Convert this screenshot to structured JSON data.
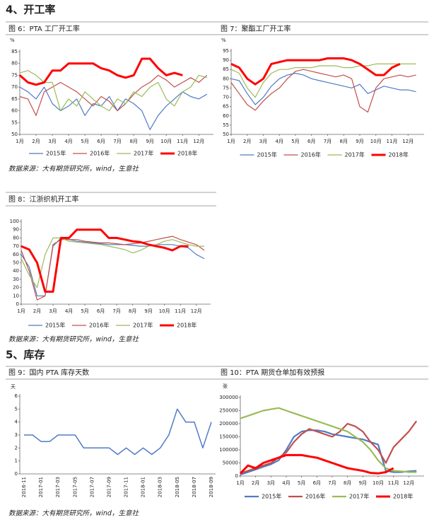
{
  "headings": [
    "4、开工率",
    "5、库存"
  ],
  "notes": [
    "数据来源：大有期货研究所，wind，生意社",
    "数据来源：大有期货研究所，wind，生意社",
    "数据来源：大有期货研究所，wind，生意社"
  ],
  "chart_data": [
    {
      "type": "line",
      "title": "图 6：PTA 工厂开工率",
      "y_unit": "%",
      "x": [
        1,
        1.5,
        2,
        2.5,
        3,
        3.5,
        4,
        4.5,
        5,
        5.5,
        6,
        6.5,
        7,
        7.5,
        8,
        8.5,
        9,
        9.5,
        10,
        10.5,
        11,
        11.5,
        12,
        12.5
      ],
      "xlim": [
        1,
        12.9
      ],
      "xticks": [
        {
          "value": 1,
          "label": "1月"
        },
        {
          "value": 2,
          "label": "2月"
        },
        {
          "value": 3,
          "label": "3月"
        },
        {
          "value": 4,
          "label": "4月"
        },
        {
          "value": 5,
          "label": "5月"
        },
        {
          "value": 6,
          "label": "6月"
        },
        {
          "value": 7,
          "label": "7月"
        },
        {
          "value": 8,
          "label": "8月"
        },
        {
          "value": 9,
          "label": "9月"
        },
        {
          "value": 10,
          "label": "10月"
        },
        {
          "value": 11,
          "label": "11月"
        },
        {
          "value": 12,
          "label": "12月"
        }
      ],
      "ylim": [
        50,
        85
      ],
      "yticks": [
        50,
        55,
        60,
        65,
        70,
        75,
        80,
        85
      ],
      "series": [
        {
          "name": "2015年",
          "color": "#4f7bc4",
          "width": 1.2,
          "values": [
            70,
            68,
            65,
            70,
            63,
            60,
            62,
            65,
            58,
            63,
            62,
            66,
            60,
            65,
            63,
            60,
            52,
            58,
            62,
            65,
            68,
            66,
            65,
            67
          ]
        },
        {
          "name": "2016年",
          "color": "#c0504d",
          "width": 1.2,
          "values": [
            66,
            65,
            58,
            68,
            70,
            72,
            70,
            68,
            65,
            62,
            66,
            64,
            60,
            63,
            67,
            70,
            72,
            75,
            73,
            70,
            72,
            74,
            72,
            75
          ]
        },
        {
          "name": "2017年",
          "color": "#9bbb59",
          "width": 1.2,
          "values": [
            76,
            77,
            75,
            72,
            72,
            60,
            65,
            62,
            68,
            65,
            62,
            60,
            65,
            63,
            68,
            66,
            70,
            72,
            65,
            62,
            68,
            70,
            75,
            74
          ]
        },
        {
          "name": "2018年",
          "color": "#ff0000",
          "width": 3,
          "values": [
            75,
            72,
            71,
            72,
            77,
            77,
            80,
            80,
            80,
            80,
            78,
            77,
            75,
            74,
            75,
            82,
            82,
            78,
            75,
            76,
            75,
            null,
            null,
            null
          ]
        }
      ]
    },
    {
      "type": "line",
      "title": "图 7：聚酯工厂开工率",
      "y_unit": "%",
      "x": [
        1,
        1.5,
        2,
        2.5,
        3,
        3.5,
        4,
        4.5,
        5,
        5.5,
        6,
        6.5,
        7,
        7.5,
        8,
        8.5,
        9,
        9.5,
        10,
        10.5,
        11,
        11.5,
        12,
        12.5
      ],
      "xlim": [
        1,
        13
      ],
      "xticks": [
        {
          "value": 1,
          "label": "1月"
        },
        {
          "value": 2,
          "label": "2月"
        },
        {
          "value": 3,
          "label": "3月"
        },
        {
          "value": 4,
          "label": "4月"
        },
        {
          "value": 5,
          "label": "5月"
        },
        {
          "value": 6,
          "label": "6月"
        },
        {
          "value": 7,
          "label": "7月"
        },
        {
          "value": 8,
          "label": "8月"
        },
        {
          "value": 9,
          "label": "9月"
        },
        {
          "value": 10,
          "label": "10月"
        },
        {
          "value": 11,
          "label": "11月"
        },
        {
          "value": 12,
          "label": "12月"
        }
      ],
      "ylim": [
        50,
        95
      ],
      "yticks": [
        50,
        55,
        60,
        65,
        70,
        75,
        80,
        85,
        90,
        95
      ],
      "series": [
        {
          "name": "2015年",
          "color": "#4f7bc4",
          "width": 1.2,
          "values": [
            80,
            79,
            72,
            66,
            70,
            76,
            80,
            82,
            83,
            82,
            80,
            79,
            78,
            77,
            76,
            75,
            77,
            72,
            74,
            76,
            75,
            74,
            74,
            73
          ]
        },
        {
          "name": "2016年",
          "color": "#c0504d",
          "width": 1.2,
          "values": [
            78,
            72,
            66,
            63,
            68,
            72,
            75,
            80,
            84,
            85,
            84,
            83,
            82,
            81,
            82,
            80,
            65,
            62,
            75,
            80,
            81,
            82,
            81,
            82
          ]
        },
        {
          "name": "2017年",
          "color": "#9bbb59",
          "width": 1.2,
          "values": [
            85,
            83,
            75,
            70,
            78,
            83,
            85,
            85,
            86,
            86,
            86,
            87,
            87,
            87,
            86,
            86,
            87,
            87,
            88,
            88,
            88,
            88,
            88,
            88
          ]
        },
        {
          "name": "2018年",
          "color": "#ff0000",
          "width": 3,
          "values": [
            88,
            86,
            80,
            77,
            80,
            88,
            89,
            90,
            90,
            90,
            90,
            90,
            91,
            91,
            91,
            90,
            88,
            85,
            82,
            82,
            86,
            88,
            null,
            null
          ]
        }
      ]
    },
    {
      "type": "line",
      "title": "图 8：江浙织机开工率",
      "x": [
        1,
        1.5,
        2,
        2.5,
        3,
        3.5,
        4,
        4.5,
        5,
        5.5,
        6,
        6.5,
        7,
        7.5,
        8,
        8.5,
        9,
        9.5,
        10,
        10.5,
        11,
        11.5,
        12,
        12.5
      ],
      "xlim": [
        1,
        12.9
      ],
      "xticks": [
        {
          "value": 1,
          "label": "1月"
        },
        {
          "value": 2,
          "label": "2月"
        },
        {
          "value": 3,
          "label": "3月"
        },
        {
          "value": 4,
          "label": "4月"
        },
        {
          "value": 5,
          "label": "5月"
        },
        {
          "value": 6,
          "label": "6月"
        },
        {
          "value": 7,
          "label": "7月"
        },
        {
          "value": 8,
          "label": "8月"
        },
        {
          "value": 9,
          "label": "9月"
        },
        {
          "value": 10,
          "label": "10月"
        },
        {
          "value": 11,
          "label": "11月"
        },
        {
          "value": 12,
          "label": "12月"
        }
      ],
      "ylim": [
        0,
        100
      ],
      "yticks": [
        0,
        10,
        20,
        30,
        40,
        50,
        60,
        70,
        80,
        90,
        100
      ],
      "series": [
        {
          "name": "2015年",
          "color": "#4f7bc4",
          "width": 1.2,
          "values": [
            60,
            45,
            10,
            10,
            70,
            80,
            78,
            76,
            75,
            74,
            73,
            72,
            72,
            72,
            71,
            70,
            70,
            72,
            72,
            72,
            70,
            68,
            60,
            55
          ]
        },
        {
          "name": "2016年",
          "color": "#c0504d",
          "width": 1.2,
          "values": [
            65,
            40,
            5,
            10,
            72,
            78,
            78,
            78,
            76,
            75,
            74,
            74,
            73,
            72,
            73,
            74,
            76,
            78,
            80,
            82,
            78,
            75,
            72,
            65
          ]
        },
        {
          "name": "2017年",
          "color": "#9bbb59",
          "width": 1.2,
          "values": [
            55,
            35,
            20,
            60,
            80,
            80,
            76,
            75,
            74,
            73,
            72,
            70,
            68,
            66,
            62,
            65,
            70,
            72,
            76,
            78,
            75,
            72,
            70,
            70
          ]
        },
        {
          "name": "2018年",
          "color": "#ff0000",
          "width": 3,
          "values": [
            70,
            66,
            50,
            15,
            15,
            80,
            80,
            90,
            90,
            90,
            90,
            80,
            80,
            78,
            76,
            75,
            72,
            70,
            68,
            65,
            70,
            70,
            null,
            null
          ]
        }
      ]
    },
    {
      "type": "line",
      "title": "图 9：国内 PTA 库存天数",
      "y_unit": "天",
      "categories": [
        "2016-11",
        null,
        "2017-01",
        null,
        "2017-03",
        null,
        "2017-05",
        null,
        "2017-07",
        null,
        "2017-09",
        null,
        "2017-11",
        null,
        "2018-01",
        null,
        "2018-03",
        null,
        "2018-05",
        null,
        "2018-07",
        null,
        "2018-09"
      ],
      "ylim": [
        0,
        6
      ],
      "yticks": [
        0,
        1,
        2,
        3,
        4,
        5,
        6
      ],
      "series": [
        {
          "color": "#4f7bc4",
          "width": 1.5,
          "values": [
            3,
            3,
            2.5,
            2.5,
            3,
            3,
            3,
            2,
            2,
            2,
            2,
            1.5,
            2,
            1.5,
            2,
            1.5,
            2,
            3,
            5,
            4,
            4,
            2,
            4
          ]
        }
      ]
    },
    {
      "type": "line",
      "title": "图 10：PTA 期货仓单加有效预报",
      "y_unit": "张",
      "x": [
        1,
        1.5,
        2,
        2.5,
        3,
        3.5,
        4,
        4.5,
        5,
        5.5,
        6,
        6.5,
        7,
        7.5,
        8,
        8.5,
        9,
        9.5,
        10,
        10.5,
        11,
        11.5,
        12,
        12.5
      ],
      "xlim": [
        1,
        13
      ],
      "xticks": [
        {
          "value": 1,
          "label": "1月"
        },
        {
          "value": 2,
          "label": "2月"
        },
        {
          "value": 3,
          "label": "3月"
        },
        {
          "value": 4,
          "label": "4月"
        },
        {
          "value": 5,
          "label": "5月"
        },
        {
          "value": 6,
          "label": "6月"
        },
        {
          "value": 7,
          "label": "7月"
        },
        {
          "value": 8,
          "label": "8月"
        },
        {
          "value": 9,
          "label": "9月"
        },
        {
          "value": 10,
          "label": "10月"
        },
        {
          "value": 11,
          "label": "11月"
        },
        {
          "value": 12,
          "label": "12月"
        }
      ],
      "ylim": [
        0,
        300000
      ],
      "yticks": [
        0,
        50000,
        100000,
        150000,
        200000,
        250000,
        300000
      ],
      "series": [
        {
          "name": "2015年",
          "color": "#4f7bc4",
          "width": 2.2,
          "values": [
            5000,
            15000,
            25000,
            35000,
            45000,
            60000,
            100000,
            150000,
            170000,
            175000,
            175000,
            170000,
            160000,
            155000,
            150000,
            145000,
            140000,
            130000,
            120000,
            20000,
            15000,
            15000,
            18000,
            20000
          ]
        },
        {
          "name": "2016年",
          "color": "#c0504d",
          "width": 2.2,
          "values": [
            10000,
            20000,
            30000,
            40000,
            50000,
            70000,
            90000,
            130000,
            160000,
            180000,
            170000,
            160000,
            150000,
            170000,
            200000,
            190000,
            170000,
            130000,
            100000,
            50000,
            110000,
            140000,
            170000,
            210000
          ]
        },
        {
          "name": "2017年",
          "color": "#9bbb59",
          "width": 2.2,
          "values": [
            220000,
            230000,
            240000,
            250000,
            255000,
            260000,
            250000,
            240000,
            230000,
            220000,
            210000,
            200000,
            190000,
            180000,
            170000,
            150000,
            130000,
            100000,
            60000,
            30000,
            20000,
            18000,
            15000,
            15000
          ]
        },
        {
          "name": "2018年",
          "color": "#ff0000",
          "width": 3,
          "values": [
            10000,
            40000,
            30000,
            50000,
            60000,
            70000,
            80000,
            80000,
            80000,
            75000,
            70000,
            60000,
            50000,
            40000,
            30000,
            25000,
            20000,
            12000,
            10000,
            15000,
            30000,
            null,
            null,
            null
          ]
        }
      ]
    }
  ]
}
